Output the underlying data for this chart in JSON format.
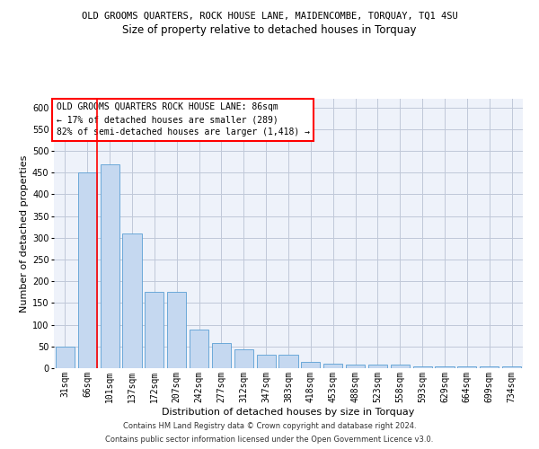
{
  "title1": "OLD GROOMS QUARTERS, ROCK HOUSE LANE, MAIDENCOMBE, TORQUAY, TQ1 4SU",
  "title2": "Size of property relative to detached houses in Torquay",
  "xlabel": "Distribution of detached houses by size in Torquay",
  "ylabel": "Number of detached properties",
  "categories": [
    "31sqm",
    "66sqm",
    "101sqm",
    "137sqm",
    "172sqm",
    "207sqm",
    "242sqm",
    "277sqm",
    "312sqm",
    "347sqm",
    "383sqm",
    "418sqm",
    "453sqm",
    "488sqm",
    "523sqm",
    "558sqm",
    "593sqm",
    "629sqm",
    "664sqm",
    "699sqm",
    "734sqm"
  ],
  "values": [
    50,
    450,
    470,
    310,
    175,
    175,
    88,
    57,
    43,
    30,
    30,
    15,
    10,
    8,
    8,
    8,
    5,
    5,
    5,
    5,
    5
  ],
  "bar_color": "#c5d8f0",
  "bar_edge_color": "#5a9fd4",
  "grid_color": "#c0c8d8",
  "background_color": "#eef2fa",
  "red_line_x": 1,
  "annotation_box_text": "OLD GROOMS QUARTERS ROCK HOUSE LANE: 86sqm\n← 17% of detached houses are smaller (289)\n82% of semi-detached houses are larger (1,418) →",
  "annotation_box_color": "white",
  "annotation_box_edge_color": "red",
  "ylim": [
    0,
    620
  ],
  "yticks": [
    0,
    50,
    100,
    150,
    200,
    250,
    300,
    350,
    400,
    450,
    500,
    550,
    600
  ],
  "footnote1": "Contains HM Land Registry data © Crown copyright and database right 2024.",
  "footnote2": "Contains public sector information licensed under the Open Government Licence v3.0.",
  "title1_fontsize": 7.5,
  "title2_fontsize": 8.5,
  "xlabel_fontsize": 8,
  "ylabel_fontsize": 8,
  "tick_fontsize": 7,
  "annotation_fontsize": 7,
  "footnote_fontsize": 6
}
